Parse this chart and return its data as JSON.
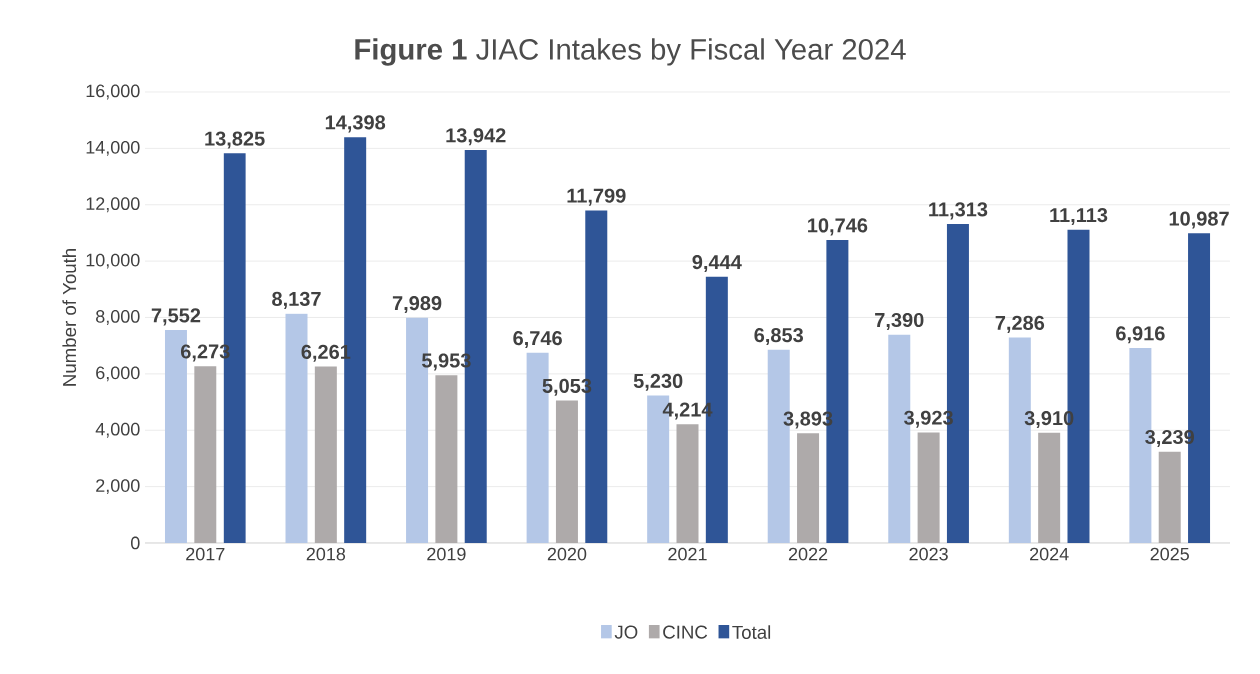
{
  "chart_data": {
    "type": "bar",
    "title": "**Figure 1**  JIAC Intakes by Fiscal Year 2024",
    "ylabel": "Number of Youth",
    "categories": [
      "2017",
      "2018",
      "2019",
      "2020",
      "2021",
      "2022",
      "2023",
      "2024",
      "2025"
    ],
    "series": [
      {
        "name": "JO",
        "color": "#b4c7e7",
        "values": [
          7552,
          8137,
          7989,
          6746,
          5230,
          6853,
          7390,
          7286,
          6916
        ],
        "value_labels": [
          "7,552",
          "8,137",
          "7,989",
          "6,746",
          "5,230",
          "6,853",
          "7,390",
          "7,286",
          "6,916"
        ]
      },
      {
        "name": "CINC",
        "color": "#aeaaaa",
        "values": [
          6273,
          6261,
          5953,
          5053,
          4214,
          3893,
          3923,
          3910,
          3239
        ],
        "value_labels": [
          "6,273",
          "6,261",
          "5,953",
          "5,053",
          "4,214",
          "3,893",
          "3,923",
          "3,910",
          "3,239"
        ]
      },
      {
        "name": "Total",
        "color": "#2f5597",
        "values": [
          13825,
          14398,
          13942,
          11799,
          9444,
          10746,
          11313,
          11113,
          10987
        ],
        "value_labels": [
          "13,825",
          "14,398",
          "13,942",
          "11,799",
          "9,444",
          "10,746",
          "11,313",
          "11,113",
          "10,987"
        ]
      }
    ],
    "ylim": [
      0,
      16000
    ],
    "yticks": [
      {
        "value": 0,
        "label": "0"
      },
      {
        "value": 2000,
        "label": "2,000"
      },
      {
        "value": 4000,
        "label": "4,000"
      },
      {
        "value": 6000,
        "label": "6,000"
      },
      {
        "value": 8000,
        "label": "8,000"
      },
      {
        "value": 10000,
        "label": "10,000"
      },
      {
        "value": 12000,
        "label": "12,000"
      },
      {
        "value": 14000,
        "label": "14,000"
      },
      {
        "value": 16000,
        "label": "16,000"
      }
    ],
    "grid": "y",
    "legend": "bottom"
  }
}
